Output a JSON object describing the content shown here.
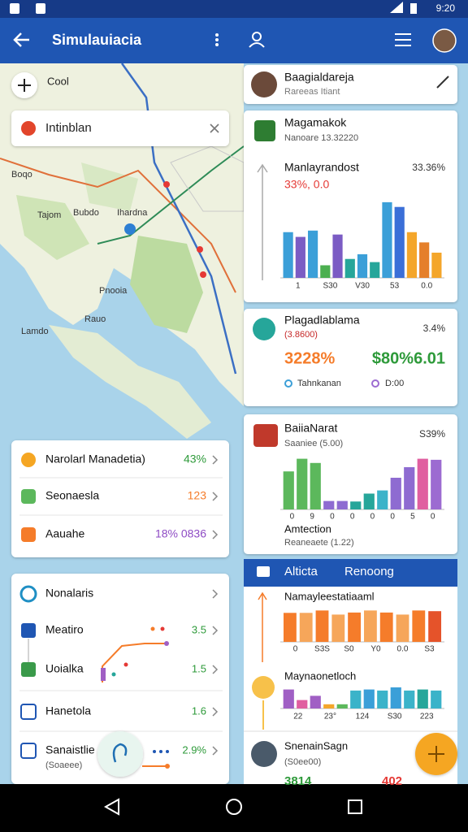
{
  "status_bar": {
    "time": "9:20"
  },
  "app_bar": {
    "title": "Simulauiacia"
  },
  "map": {
    "zoom_label": "Cool",
    "search": "Intinblan",
    "labels": [
      "Boqo",
      "Tajom",
      "Bubdo",
      "Ihardna",
      "Pnooia",
      "Rauo",
      "Lamdo"
    ]
  },
  "profile": {
    "name": "Baagialdareja",
    "subtitle": "Rareeas Itiant"
  },
  "card_chart": {
    "title": "Magamakok",
    "subtitle": "Nanoare 13.32220",
    "chart_title": "Manlayrandost",
    "stat": "33.36%",
    "stat2": "33%, 0.0",
    "bars": {
      "ylim": [
        0,
        100
      ],
      "values": [
        58,
        52,
        60,
        16,
        55,
        24,
        30,
        20,
        96,
        90,
        58,
        45,
        32
      ],
      "colors": [
        "#3b9fd8",
        "#7b5cc4",
        "#3b9fd8",
        "#4caf50",
        "#7b5cc4",
        "#26a69a",
        "#3b9fd8",
        "#26a69a",
        "#3b9fd8",
        "#3b6fd8",
        "#f4a62a",
        "#e57f2a",
        "#f4a62a"
      ]
    },
    "x_labels": [
      "1",
      "S30",
      "V30",
      "53",
      "0.0"
    ]
  },
  "card_stats": {
    "title": "Plagadlablama",
    "subtitle": "(3.8600)",
    "rate": "3.4%",
    "value1": "3228%",
    "value2": "$80%6.01",
    "legend": [
      "Tahnkanan",
      "D:00"
    ]
  },
  "card_bars": {
    "title": "BaiiaNarat",
    "subtitle": "Saaniee (5.00)",
    "rate": "S39%",
    "bars": {
      "ylim": [
        0,
        100
      ],
      "values": [
        72,
        96,
        88,
        16,
        16,
        15,
        30,
        36,
        60,
        80,
        96,
        94
      ],
      "colors": [
        "#5cb85c",
        "#5cb85c",
        "#5cb85c",
        "#8e6bd1",
        "#8e6bd1",
        "#26a69a",
        "#26a69a",
        "#3bb3c9",
        "#8e6bd1",
        "#8e6bd1",
        "#e05fa0",
        "#9c6bd1"
      ]
    },
    "x_labels": [
      "0",
      "9",
      "0",
      "0",
      "0",
      "0",
      "5",
      "0"
    ],
    "footer_title": "Amtection",
    "footer_subtitle": "Reaneaete (1.22)"
  },
  "tab_bar": {
    "tabs": [
      "Alticta",
      "Renoong"
    ]
  },
  "card_orange": {
    "title": "Namayleestatiaaml",
    "bars": {
      "ylim": [
        0,
        100
      ],
      "values": [
        85,
        85,
        92,
        80,
        86,
        92,
        86,
        80,
        92,
        90
      ],
      "colors": [
        "#f57c2a",
        "#f6a65a",
        "#f57c2a",
        "#f6a65a",
        "#f57c2a",
        "#f6a65a",
        "#f57c2a",
        "#f6a65a",
        "#f57c2a",
        "#e5532a"
      ]
    },
    "x_labels": [
      "0",
      "S3S",
      "S0",
      "Y0",
      "0.0",
      "S3"
    ]
  },
  "card_mixed": {
    "title": "Maynaonetloch",
    "bars": {
      "ylim": [
        0,
        100
      ],
      "values": [
        90,
        40,
        60,
        20,
        20,
        85,
        90,
        85,
        100,
        85,
        90,
        85
      ],
      "colors": [
        "#a05fc4",
        "#e05fa0",
        "#a05fc4",
        "#f4a62a",
        "#5cb85c",
        "#3bb3c9",
        "#3b9fd8",
        "#3bb3c9",
        "#3b9fd8",
        "#3bb3c9",
        "#26a69a",
        "#3bb3c9"
      ]
    },
    "x_labels": [
      "22",
      "23°",
      "124",
      "S30",
      "223"
    ]
  },
  "card_person": {
    "name": "SnenainSagn",
    "subtitle": "(S0ee00)",
    "values": [
      "3814",
      "402"
    ]
  },
  "list_top": {
    "rows": [
      {
        "label": "Narolarl Manadetia)",
        "value": "43%"
      },
      {
        "label": "Seonaesla",
        "value": "123"
      },
      {
        "label": "Aauahe",
        "value": "18% 0836"
      }
    ]
  },
  "list_bottom": {
    "header": "Nonalaris",
    "rows": [
      {
        "label": "Meatiro",
        "value": "3.5"
      },
      {
        "label": "Uoialka",
        "value": "1.5"
      },
      {
        "label": "Hanetola",
        "value": "1.6"
      },
      {
        "label": "Sanaistlie",
        "value": "2.9%",
        "sub": "(Soaeee)"
      }
    ]
  }
}
